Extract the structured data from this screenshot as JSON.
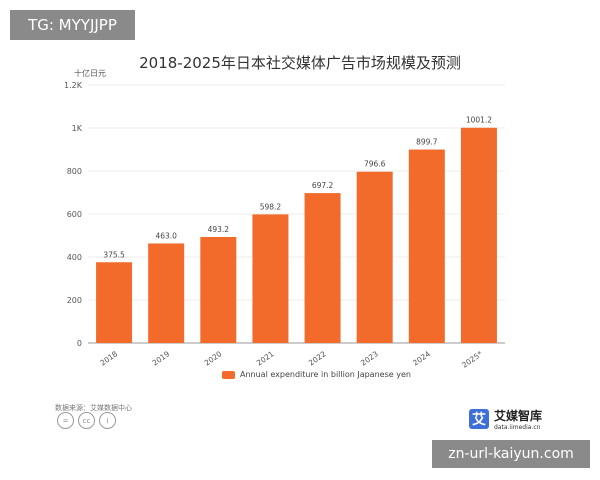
{
  "watermarks": {
    "top_left": "TG: MYYJJPP",
    "bottom_right": "zn-url-kaiyun.com"
  },
  "chart_data": {
    "type": "bar",
    "title": "2018-2025年日本社交媒体广告市场规模及预测",
    "unit": "十亿日元",
    "categories": [
      "2018",
      "2019",
      "2020",
      "2021",
      "2022",
      "2023",
      "2024",
      "2025*"
    ],
    "series": [
      {
        "name": "Annual expenditure in billion Japanese yen",
        "values": [
          375.5,
          463.0,
          493.2,
          598.2,
          697.2,
          796.6,
          899.7,
          1001.2
        ],
        "labels": [
          "375.5",
          "463.0",
          "493.2",
          "598.2",
          "697.2",
          "796.6",
          "899.7",
          "1001.2"
        ],
        "color": "#f26b2a"
      }
    ],
    "ylim": [
      0,
      1200
    ],
    "yticks": [
      0,
      200,
      400,
      600,
      800,
      1000,
      1200
    ],
    "ytick_labels": [
      "0",
      "200",
      "400",
      "600",
      "800",
      "1K",
      "1.2K"
    ],
    "grid": true,
    "legend": "bottom"
  },
  "footer": {
    "source": "数据来源：艾媒数据中心",
    "logo_name": "艾媒智库",
    "logo_url": "data.iimedia.cn",
    "logo_icon_text": "艾",
    "license_icons": [
      "=",
      "cc",
      "i"
    ]
  }
}
